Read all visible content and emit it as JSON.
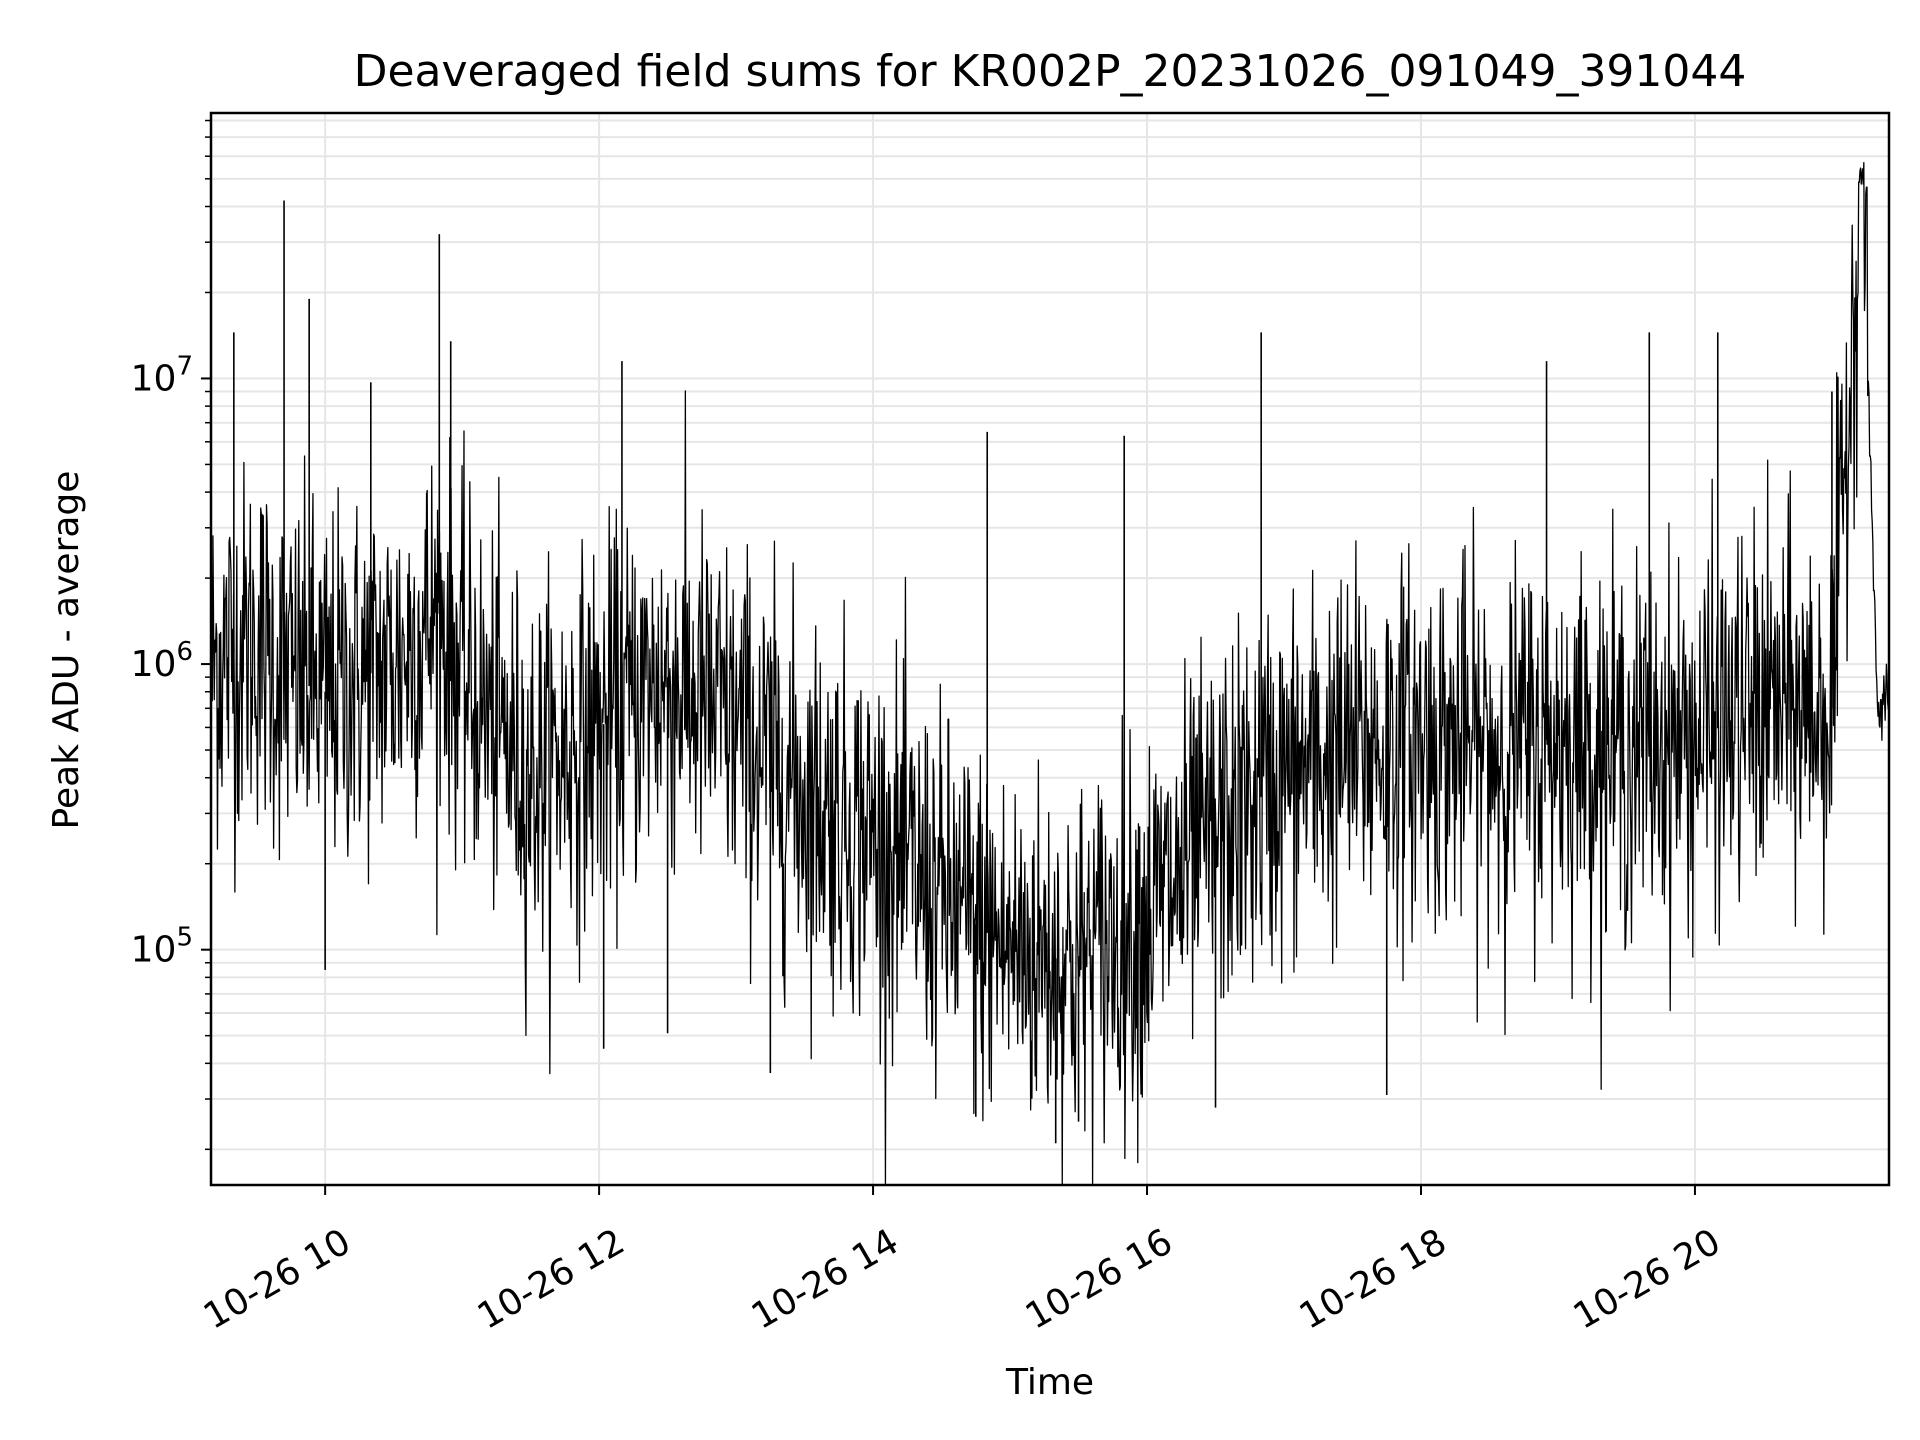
{
  "chart_data": {
    "type": "line",
    "title": "Deaveraged field sums for KR002P_20231026_091049_391044",
    "xlabel": "Time",
    "ylabel": "Peak ADU - average",
    "yscale": "log",
    "ylim": [
      15000,
      85000000
    ],
    "xlim": [
      "2023-10-26 09:10",
      "2023-10-26 21:25"
    ],
    "grid": true,
    "line_color": "#000000",
    "grid_color": "#e6e6e6",
    "x_ticks": [
      "10-26 10",
      "10-26 12",
      "10-26 14",
      "10-26 16",
      "10-26 18",
      "10-26 20"
    ],
    "y_ticks": [
      {
        "base": "10",
        "exp": "5"
      },
      {
        "base": "10",
        "exp": "6"
      },
      {
        "base": "10",
        "exp": "7"
      }
    ],
    "series": [
      {
        "x": [
          "2023-10-26 09:10",
          "2023-10-26 09:30",
          "2023-10-26 09:42",
          "2023-10-26 10:00",
          "2023-10-26 10:30",
          "2023-10-26 10:50",
          "2023-10-26 11:00",
          "2023-10-26 11:30",
          "2023-10-26 12:00",
          "2023-10-26 12:30",
          "2023-10-26 13:00",
          "2023-10-26 13:30",
          "2023-10-26 14:00",
          "2023-10-26 14:30",
          "2023-10-26 15:00",
          "2023-10-26 15:30",
          "2023-10-26 16:00",
          "2023-10-26 16:30",
          "2023-10-26 17:00",
          "2023-10-26 17:30",
          "2023-10-26 18:00",
          "2023-10-26 18:30",
          "2023-10-26 19:00",
          "2023-10-26 19:30",
          "2023-10-26 20:00",
          "2023-10-26 20:30",
          "2023-10-26 21:00",
          "2023-10-26 21:13",
          "2023-10-26 21:20",
          "2023-10-26 21:25"
        ],
        "y": [
          1000000,
          1200000,
          900000,
          800000,
          1000000,
          1500000,
          900000,
          400000,
          600000,
          900000,
          600000,
          350000,
          250000,
          150000,
          100000,
          90000,
          130000,
          250000,
          400000,
          500000,
          550000,
          500000,
          550000,
          500000,
          550000,
          700000,
          700000,
          55000000,
          700000,
          800000
        ]
      }
    ],
    "spikes": [
      {
        "x": "2023-10-26 09:42",
        "y": 42000000
      },
      {
        "x": "2023-10-26 09:53",
        "y": 19000000
      },
      {
        "x": "2023-10-26 10:50",
        "y": 32000000
      },
      {
        "x": "2023-10-26 10:55",
        "y": 13500000
      },
      {
        "x": "2023-10-26 09:20",
        "y": 14500000
      },
      {
        "x": "2023-10-26 12:10",
        "y": 11500000
      },
      {
        "x": "2023-10-26 10:20",
        "y": 9700000
      },
      {
        "x": "2023-10-26 16:50",
        "y": 14500000
      },
      {
        "x": "2023-10-26 18:55",
        "y": 11500000
      },
      {
        "x": "2023-10-26 19:40",
        "y": 14500000
      },
      {
        "x": "2023-10-26 20:10",
        "y": 14500000
      },
      {
        "x": "2023-10-26 21:00",
        "y": 9000000
      },
      {
        "x": "2023-10-26 14:50",
        "y": 6500000
      },
      {
        "x": "2023-10-26 15:50",
        "y": 6300000
      }
    ],
    "dips": [
      {
        "x": "2023-10-26 10:00",
        "y": 85000
      },
      {
        "x": "2023-10-26 12:02",
        "y": 45000
      },
      {
        "x": "2023-10-26 12:30",
        "y": 51000
      },
      {
        "x": "2023-10-26 13:15",
        "y": 37000
      },
      {
        "x": "2023-10-26 15:20",
        "y": 21000
      },
      {
        "x": "2023-10-26 15:30",
        "y": 25000
      },
      {
        "x": "2023-10-26 14:45",
        "y": 26000
      },
      {
        "x": "2023-10-26 16:30",
        "y": 28000
      },
      {
        "x": "2023-10-26 17:45",
        "y": 31000
      }
    ]
  }
}
